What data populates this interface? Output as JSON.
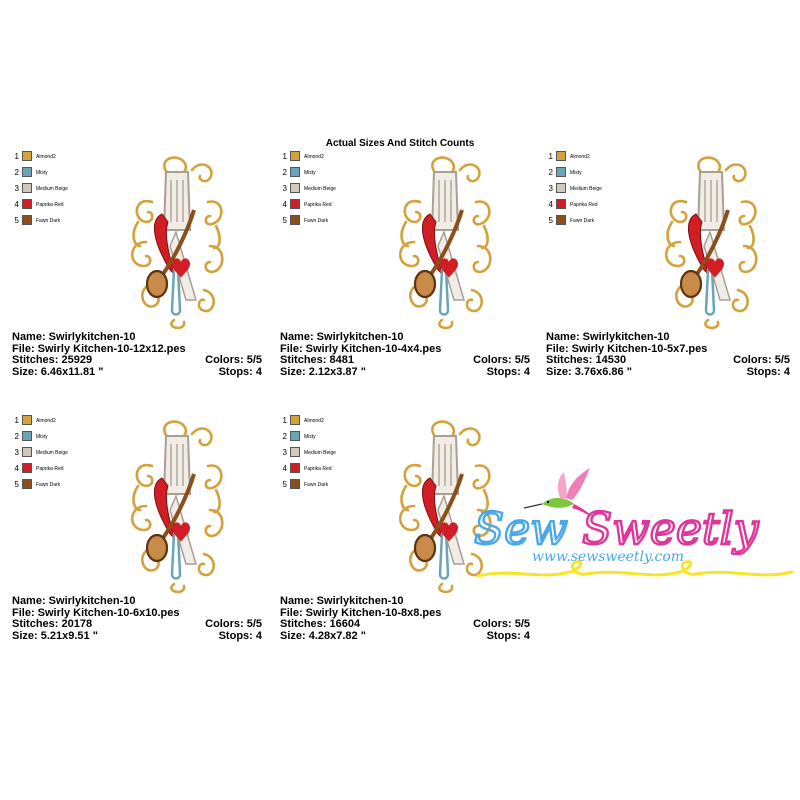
{
  "page": {
    "title": "Actual Sizes And Stitch Counts"
  },
  "palette": [
    {
      "index": "1",
      "name": "Almond2",
      "color": "#d4a23c"
    },
    {
      "index": "2",
      "name": "Misty",
      "color": "#6aa5b6"
    },
    {
      "index": "3",
      "name": "Medium Beige",
      "color": "#d2c9bd"
    },
    {
      "index": "4",
      "name": "Paprika Red",
      "color": "#d11e24"
    },
    {
      "index": "5",
      "name": "Fawn Dark",
      "color": "#8a4f1c"
    }
  ],
  "designs": [
    {
      "name": "Name: Swirlykitchen-10",
      "file": "File: Swirly Kitchen-10-12x12.pes",
      "stitches": "Stitches: 25929",
      "colors": "Colors: 5/5",
      "size": "Size: 6.46x11.81 \"",
      "stops": "Stops: 4"
    },
    {
      "name": "Name: Swirlykitchen-10",
      "file": "File: Swirly Kitchen-10-4x4.pes",
      "stitches": "Stitches: 8481",
      "colors": "Colors: 5/5",
      "size": "Size: 2.12x3.87 \"",
      "stops": "Stops: 4"
    },
    {
      "name": "Name: Swirlykitchen-10",
      "file": "File: Swirly Kitchen-10-5x7.pes",
      "stitches": "Stitches: 14530",
      "colors": "Colors: 5/5",
      "size": "Size: 3.76x6.86 \"",
      "stops": "Stops: 4"
    },
    {
      "name": "Name: Swirlykitchen-10",
      "file": "File: Swirly Kitchen-10-6x10.pes",
      "stitches": "Stitches: 20178",
      "colors": "Colors: 5/5",
      "size": "Size: 5.21x9.51 \"",
      "stops": "Stops: 4"
    },
    {
      "name": "Name: Swirlykitchen-10",
      "file": "File: Swirly Kitchen-10-8x8.pes",
      "stitches": "Stitches: 16604",
      "colors": "Colors: 5/5",
      "size": "Size: 4.28x7.82 \"",
      "stops": "Stops: 4"
    }
  ],
  "logo": {
    "brand": "Sew Sweetly",
    "url": "www.sewsweetly.com",
    "colors": {
      "sew": "#4aa8e8",
      "sweetly": "#e0359a",
      "bird_green": "#7cc83c",
      "bird_pink": "#ef7fb6",
      "ribbon": "#f6e62a"
    }
  }
}
